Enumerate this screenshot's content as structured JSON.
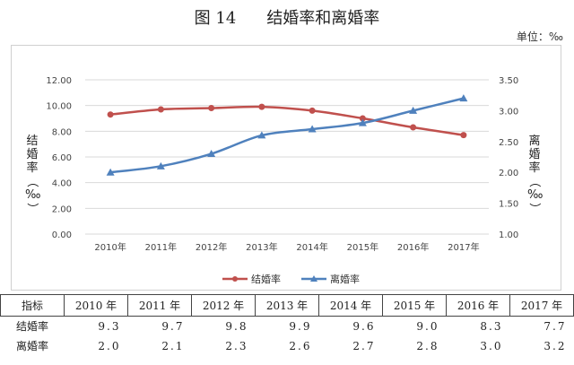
{
  "figure": {
    "number": "图 14",
    "title": "结婚率和离婚率",
    "unit": "单位：‰"
  },
  "chart_data": {
    "type": "line",
    "categories": [
      "2010年",
      "2011年",
      "2012年",
      "2013年",
      "2014年",
      "2015年",
      "2016年",
      "2017年"
    ],
    "series": [
      {
        "name": "结婚率",
        "axis": "left",
        "color": "#c0504d",
        "marker": "circle",
        "values": [
          9.3,
          9.7,
          9.8,
          9.9,
          9.6,
          9.0,
          8.3,
          7.7
        ]
      },
      {
        "name": "离婚率",
        "axis": "right",
        "color": "#4f81bd",
        "marker": "triangle",
        "values": [
          2.0,
          2.1,
          2.3,
          2.6,
          2.7,
          2.8,
          3.0,
          3.2
        ]
      }
    ],
    "left_axis": {
      "label": "结婚率（‰）",
      "min": 0,
      "max": 12,
      "step": 2,
      "ticks": [
        "0.00",
        "2.00",
        "4.00",
        "6.00",
        "8.00",
        "10.00",
        "12.00"
      ]
    },
    "right_axis": {
      "label": "离婚率（‰）",
      "min": 1.0,
      "max": 3.5,
      "step": 0.5,
      "ticks": [
        "1.00",
        "1.50",
        "2.00",
        "2.50",
        "3.00",
        "3.50"
      ]
    },
    "grid": true,
    "legend_position": "bottom"
  },
  "table": {
    "header_label": "指标",
    "years": [
      "2010 年",
      "2011 年",
      "2012 年",
      "2013 年",
      "2014 年",
      "2015 年",
      "2016 年",
      "2017 年"
    ],
    "rows": [
      {
        "label": "结婚率",
        "values": [
          "9.3",
          "9.7",
          "9.8",
          "9.9",
          "9.6",
          "9.0",
          "8.3",
          "7.7"
        ]
      },
      {
        "label": "离婚率",
        "values": [
          "2.0",
          "2.1",
          "2.3",
          "2.6",
          "2.7",
          "2.8",
          "3.0",
          "3.2"
        ]
      }
    ]
  }
}
